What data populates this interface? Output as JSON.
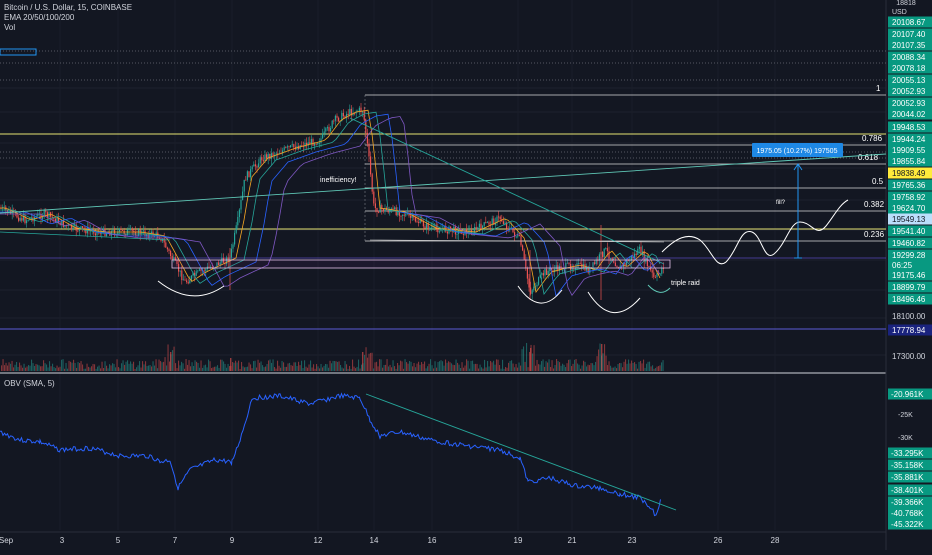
{
  "header": {
    "symbol": "Bitcoin / U.S. Dollar, 15, COINBASE",
    "ema_label": "EMA 20/50/100/200",
    "vol_label": "Vol",
    "currency": "USD",
    "top_cut_value": "18818"
  },
  "obv_header": "OBV (SMA, 5)",
  "colors": {
    "background": "#131722",
    "green_tag": "#089981",
    "yellow_line": "#e6e373",
    "white_line": "#d9d9d9",
    "blue_obv": "#2962ff",
    "trend_line": "#26a69a",
    "purple_line": "#5b5bd6",
    "tag_blue": "#1e88e5",
    "tag_navy": "#1a237e",
    "tag_yellow": "#ffeb3b"
  },
  "chart_data": [
    {
      "type": "candlestick",
      "title": "Bitcoin / U.S. Dollar, 15, COINBASE",
      "x_ticks": [
        "Sep",
        "3",
        "5",
        "7",
        "9",
        "12",
        "14",
        "16",
        "19",
        "21",
        "23",
        "26",
        "28"
      ],
      "price_labels": [
        {
          "value": "20108.67",
          "kind": "green"
        },
        {
          "value": "20107.40",
          "kind": "green"
        },
        {
          "value": "20107.35",
          "kind": "green"
        },
        {
          "value": "20088.34",
          "kind": "green"
        },
        {
          "value": "20078.18",
          "kind": "green"
        },
        {
          "value": "20055.13",
          "kind": "green"
        },
        {
          "value": "20052.93",
          "kind": "green"
        },
        {
          "value": "20052.93",
          "kind": "green"
        },
        {
          "value": "20044.02",
          "kind": "green"
        },
        {
          "value": "19948.53",
          "kind": "green"
        },
        {
          "value": "19944.24",
          "kind": "green"
        },
        {
          "value": "19909.55",
          "kind": "green"
        },
        {
          "value": "19855.84",
          "kind": "green"
        },
        {
          "value": "19838.49",
          "kind": "yellow"
        },
        {
          "value": "19765.36",
          "kind": "green"
        },
        {
          "value": "19758.92",
          "kind": "green"
        },
        {
          "value": "19624.70",
          "kind": "green"
        },
        {
          "value": "19549.13",
          "kind": "blue"
        },
        {
          "value": "19541.40",
          "kind": "green"
        },
        {
          "value": "19460.82",
          "kind": "green"
        },
        {
          "value": "19299.28",
          "kind": "green"
        },
        {
          "value": "06:25",
          "kind": "green"
        },
        {
          "value": "19175.46",
          "kind": "green"
        },
        {
          "value": "18899.79",
          "kind": "green"
        },
        {
          "value": "18496.46",
          "kind": "green"
        },
        {
          "value": "18100.00",
          "kind": "plain"
        },
        {
          "value": "17778.94",
          "kind": "navy"
        },
        {
          "value": "17300.00",
          "kind": "plain"
        }
      ],
      "fib_levels": [
        {
          "ratio": "1"
        },
        {
          "ratio": "0.786"
        },
        {
          "ratio": "0.618"
        },
        {
          "ratio": "0.5"
        },
        {
          "ratio": "0.382"
        },
        {
          "ratio": "0.236"
        }
      ],
      "annotations": [
        "inefficiency!",
        "fill?",
        "triple raid"
      ],
      "measure_label": "1975.05 (10.27%) 197505"
    },
    {
      "type": "line",
      "title": "OBV (SMA, 5)",
      "y_tick_labels": [
        "-25K",
        "-30K"
      ],
      "value_labels": [
        "-20.961K",
        "-33.295K",
        "-35.158K",
        "-35.881K",
        "-38.401K",
        "-39.366K",
        "-40.768K",
        "-45.322K"
      ]
    }
  ]
}
